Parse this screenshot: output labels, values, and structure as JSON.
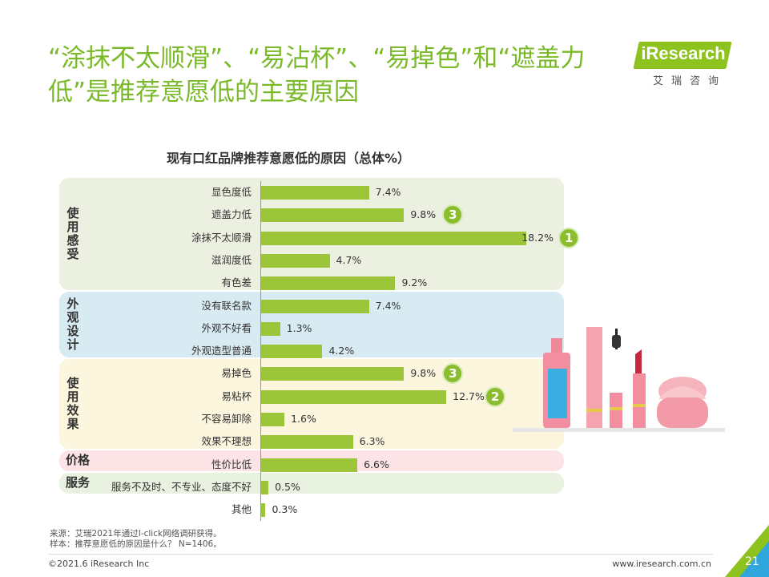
{
  "headline": "“涂抹不太顺滑”、“易沾杯”、“易掉色”和“遮盖力低”是推荐意愿低的主要原因",
  "logo": {
    "text": "iResearch",
    "subtitle": "艾瑞咨询"
  },
  "chart_data": {
    "type": "bar",
    "orientation": "horizontal",
    "title": "现有口红品牌推荐意愿低的原因（总体%）",
    "unit": "%",
    "xlim": [
      0,
      20
    ],
    "groups": [
      {
        "label": "使用感受",
        "color": "#ebf0e0",
        "items": [
          {
            "label": "显色度低",
            "value": 7.4,
            "display": "7.4%",
            "rank": ""
          },
          {
            "label": "遮盖力低",
            "value": 9.8,
            "display": "9.8%",
            "rank": "3"
          },
          {
            "label": "涂抹不太顺滑",
            "value": 18.2,
            "display": "18.2%",
            "rank": "1"
          },
          {
            "label": "滋润度低",
            "value": 4.7,
            "display": "4.7%",
            "rank": ""
          },
          {
            "label": "有色差",
            "value": 9.2,
            "display": "9.2%",
            "rank": ""
          }
        ]
      },
      {
        "label": "外观设计",
        "color": "#d8ebf2",
        "items": [
          {
            "label": "没有联名款",
            "value": 7.4,
            "display": "7.4%",
            "rank": ""
          },
          {
            "label": "外观不好看",
            "value": 1.3,
            "display": "1.3%",
            "rank": ""
          },
          {
            "label": "外观造型普通",
            "value": 4.2,
            "display": "4.2%",
            "rank": ""
          }
        ]
      },
      {
        "label": "使用效果",
        "color": "#fcf6de",
        "items": [
          {
            "label": "易掉色",
            "value": 9.8,
            "display": "9.8%",
            "rank": "3"
          },
          {
            "label": "易粘杯",
            "value": 12.7,
            "display": "12.7%",
            "rank": "2"
          },
          {
            "label": "不容易卸除",
            "value": 1.6,
            "display": "1.6%",
            "rank": ""
          },
          {
            "label": "效果不理想",
            "value": 6.3,
            "display": "6.3%",
            "rank": ""
          }
        ]
      },
      {
        "label": "价格",
        "color": "#fbe3e6",
        "items": [
          {
            "label": "性价比低",
            "value": 6.6,
            "display": "6.6%",
            "rank": ""
          }
        ]
      },
      {
        "label": "服务",
        "color": "#e9f1e0",
        "items": [
          {
            "label": "服务不及时、不专业、态度不好",
            "value": 0.5,
            "display": "0.5%",
            "rank": ""
          }
        ]
      },
      {
        "label": "",
        "color": "",
        "items": [
          {
            "label": "其他",
            "value": 0.3,
            "display": "0.3%",
            "rank": ""
          }
        ]
      }
    ]
  },
  "footnotes": {
    "source": "来源：艾瑞2021年通过I-click网络调研获得。",
    "sample": "样本：推荐意愿低的原因是什么？ N=1406。"
  },
  "footer": {
    "copyright": "©2021.6 iResearch Inc",
    "website": "www.iresearch.com.cn",
    "page": "21"
  },
  "colors": {
    "accent": "#7ab929",
    "bar": "#9dc53a",
    "badge": "#8cbd2f"
  }
}
